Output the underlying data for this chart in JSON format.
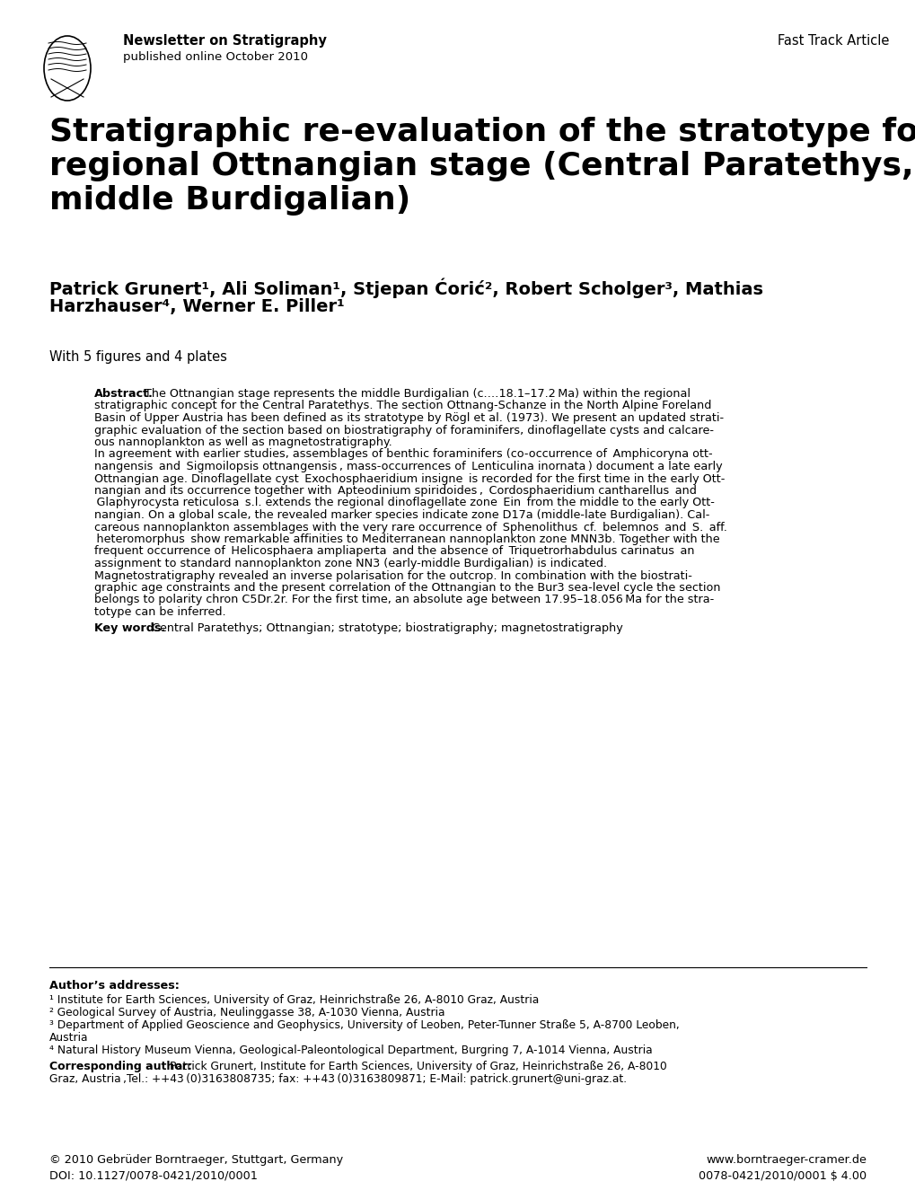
{
  "bg_color": "#ffffff",
  "header_journal": "Newsletter on Stratigraphy",
  "header_published": "published online October 2010",
  "header_right": "Fast Track Article",
  "title_line1": "Stratigraphic re-evaluation of the stratotype for the",
  "title_line2": "regional Ottnangian stage (Central Paratethys,",
  "title_line3": "middle Burdigalian)",
  "authors_line1": "Patrick Grunert¹, Ali Soliman¹, Stjepan Ćorić², Robert Scholger³, Mathias",
  "authors_line2": "Harzhauser⁴, Werner E. Piller¹",
  "with_text": "With 5 figures and 4 plates",
  "addr1": "¹ Institute for Earth Sciences, University of Graz, Heinrichstraße 26, A-8010 Graz, Austria",
  "addr2": "² Geological Survey of Austria, Neulinggasse 38, A-1030 Vienna, Austria",
  "addr3": "³ Department of Applied Geoscience and Geophysics, University of Leoben, Peter-Tunner Straße 5, A-8700 Leoben,",
  "addr3b": "Austria",
  "addr4": "⁴ Natural History Museum Vienna, Geological-Paleontological Department, Burgring 7, A-1014 Vienna, Austria",
  "footer_left1": "© 2010 Gebrüder Borntraeger, Stuttgart, Germany",
  "footer_left2": "DOI: 10.1127/0078-0421/2010/0001",
  "footer_right1": "www.borntraeger-cramer.de",
  "footer_right2": "0078-0421/2010/0001 $ 4.00"
}
